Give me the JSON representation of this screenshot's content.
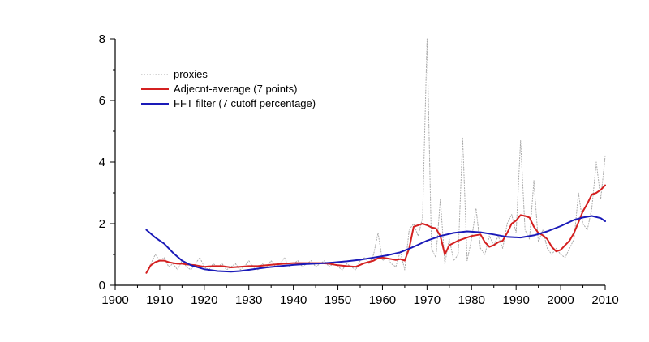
{
  "chart_data": {
    "type": "line",
    "title": "",
    "xlabel": "",
    "ylabel": "",
    "xlim": [
      1900,
      2010
    ],
    "ylim": [
      0,
      8
    ],
    "x_ticks": [
      1900,
      1910,
      1920,
      1930,
      1940,
      1950,
      1960,
      1970,
      1980,
      1990,
      2000,
      2010
    ],
    "y_ticks": [
      0,
      2,
      4,
      6,
      8
    ],
    "grid": false,
    "legend_position": "top-left",
    "series": [
      {
        "name": "proxies",
        "style": "dotted",
        "color": "#a9a9a9",
        "points": [
          [
            1907,
            0.4
          ],
          [
            1908,
            0.7
          ],
          [
            1909,
            1.0
          ],
          [
            1910,
            0.8
          ],
          [
            1911,
            0.9
          ],
          [
            1912,
            0.6
          ],
          [
            1913,
            0.7
          ],
          [
            1914,
            0.5
          ],
          [
            1915,
            0.8
          ],
          [
            1916,
            0.6
          ],
          [
            1917,
            0.5
          ],
          [
            1918,
            0.7
          ],
          [
            1919,
            0.9
          ],
          [
            1920,
            0.6
          ],
          [
            1921,
            0.5
          ],
          [
            1922,
            0.7
          ],
          [
            1923,
            0.6
          ],
          [
            1924,
            0.7
          ],
          [
            1925,
            0.5
          ],
          [
            1926,
            0.6
          ],
          [
            1927,
            0.7
          ],
          [
            1928,
            0.5
          ],
          [
            1929,
            0.6
          ],
          [
            1930,
            0.8
          ],
          [
            1931,
            0.6
          ],
          [
            1932,
            0.5
          ],
          [
            1933,
            0.7
          ],
          [
            1934,
            0.6
          ],
          [
            1935,
            0.8
          ],
          [
            1936,
            0.6
          ],
          [
            1937,
            0.7
          ],
          [
            1938,
            0.9
          ],
          [
            1939,
            0.6
          ],
          [
            1940,
            0.7
          ],
          [
            1941,
            0.8
          ],
          [
            1942,
            0.6
          ],
          [
            1943,
            0.7
          ],
          [
            1944,
            0.8
          ],
          [
            1945,
            0.6
          ],
          [
            1946,
            0.7
          ],
          [
            1947,
            0.8
          ],
          [
            1948,
            0.6
          ],
          [
            1949,
            0.7
          ],
          [
            1950,
            0.6
          ],
          [
            1951,
            0.5
          ],
          [
            1952,
            0.7
          ],
          [
            1953,
            0.6
          ],
          [
            1954,
            0.5
          ],
          [
            1955,
            0.8
          ],
          [
            1956,
            0.9
          ],
          [
            1957,
            0.7
          ],
          [
            1958,
            1.0
          ],
          [
            1959,
            1.7
          ],
          [
            1960,
            0.8
          ],
          [
            1961,
            0.9
          ],
          [
            1962,
            0.7
          ],
          [
            1963,
            0.6
          ],
          [
            1964,
            1.1
          ],
          [
            1965,
            0.5
          ],
          [
            1966,
            1.8
          ],
          [
            1967,
            2.0
          ],
          [
            1968,
            1.6
          ],
          [
            1969,
            2.2
          ],
          [
            1970,
            8.0
          ],
          [
            1971,
            1.2
          ],
          [
            1972,
            0.9
          ],
          [
            1973,
            2.8
          ],
          [
            1974,
            0.7
          ],
          [
            1975,
            1.5
          ],
          [
            1976,
            0.8
          ],
          [
            1977,
            1.0
          ],
          [
            1978,
            4.8
          ],
          [
            1979,
            0.8
          ],
          [
            1980,
            1.5
          ],
          [
            1981,
            2.5
          ],
          [
            1982,
            1.2
          ],
          [
            1983,
            1.0
          ],
          [
            1984,
            1.6
          ],
          [
            1985,
            1.3
          ],
          [
            1986,
            1.6
          ],
          [
            1987,
            1.2
          ],
          [
            1988,
            2.0
          ],
          [
            1989,
            2.3
          ],
          [
            1990,
            1.7
          ],
          [
            1991,
            4.7
          ],
          [
            1992,
            1.8
          ],
          [
            1993,
            1.5
          ],
          [
            1994,
            3.4
          ],
          [
            1995,
            1.4
          ],
          [
            1996,
            1.8
          ],
          [
            1997,
            1.2
          ],
          [
            1998,
            1.0
          ],
          [
            1999,
            1.2
          ],
          [
            2000,
            1.0
          ],
          [
            2001,
            0.9
          ],
          [
            2002,
            1.2
          ],
          [
            2003,
            1.5
          ],
          [
            2004,
            3.0
          ],
          [
            2005,
            2.0
          ],
          [
            2006,
            1.8
          ],
          [
            2007,
            2.5
          ],
          [
            2008,
            4.0
          ],
          [
            2009,
            2.8
          ],
          [
            2010,
            4.2
          ]
        ]
      },
      {
        "name": "Adjecnt-average (7 points)",
        "style": "solid",
        "color": "#d42020",
        "points": [
          [
            1907,
            0.4
          ],
          [
            1908,
            0.65
          ],
          [
            1909,
            0.75
          ],
          [
            1910,
            0.8
          ],
          [
            1911,
            0.8
          ],
          [
            1912,
            0.75
          ],
          [
            1913,
            0.72
          ],
          [
            1914,
            0.7
          ],
          [
            1915,
            0.7
          ],
          [
            1916,
            0.68
          ],
          [
            1918,
            0.65
          ],
          [
            1920,
            0.6
          ],
          [
            1922,
            0.62
          ],
          [
            1924,
            0.62
          ],
          [
            1926,
            0.58
          ],
          [
            1928,
            0.6
          ],
          [
            1930,
            0.62
          ],
          [
            1932,
            0.62
          ],
          [
            1934,
            0.65
          ],
          [
            1936,
            0.68
          ],
          [
            1938,
            0.7
          ],
          [
            1940,
            0.72
          ],
          [
            1942,
            0.72
          ],
          [
            1944,
            0.72
          ],
          [
            1946,
            0.72
          ],
          [
            1948,
            0.7
          ],
          [
            1950,
            0.65
          ],
          [
            1952,
            0.62
          ],
          [
            1954,
            0.6
          ],
          [
            1956,
            0.72
          ],
          [
            1958,
            0.8
          ],
          [
            1959,
            0.88
          ],
          [
            1960,
            0.9
          ],
          [
            1962,
            0.85
          ],
          [
            1963,
            0.82
          ],
          [
            1964,
            0.85
          ],
          [
            1965,
            0.8
          ],
          [
            1966,
            1.2
          ],
          [
            1967,
            1.9
          ],
          [
            1969,
            2.0
          ],
          [
            1970,
            1.95
          ],
          [
            1971,
            1.88
          ],
          [
            1972,
            1.85
          ],
          [
            1973,
            1.6
          ],
          [
            1974,
            1.0
          ],
          [
            1975,
            1.3
          ],
          [
            1977,
            1.45
          ],
          [
            1979,
            1.55
          ],
          [
            1980,
            1.6
          ],
          [
            1982,
            1.65
          ],
          [
            1983,
            1.4
          ],
          [
            1984,
            1.25
          ],
          [
            1985,
            1.3
          ],
          [
            1986,
            1.4
          ],
          [
            1987,
            1.45
          ],
          [
            1988,
            1.7
          ],
          [
            1989,
            2.0
          ],
          [
            1990,
            2.1
          ],
          [
            1991,
            2.28
          ],
          [
            1992,
            2.25
          ],
          [
            1993,
            2.2
          ],
          [
            1994,
            1.9
          ],
          [
            1995,
            1.7
          ],
          [
            1996,
            1.62
          ],
          [
            1997,
            1.5
          ],
          [
            1998,
            1.25
          ],
          [
            1999,
            1.1
          ],
          [
            2000,
            1.15
          ],
          [
            2001,
            1.3
          ],
          [
            2002,
            1.45
          ],
          [
            2003,
            1.7
          ],
          [
            2004,
            2.05
          ],
          [
            2005,
            2.4
          ],
          [
            2006,
            2.65
          ],
          [
            2007,
            2.95
          ],
          [
            2008,
            3.0
          ],
          [
            2009,
            3.1
          ],
          [
            2010,
            3.25
          ]
        ]
      },
      {
        "name": "FFT filter (7 cutoff percentage)",
        "style": "solid",
        "color": "#1a1ab8",
        "points": [
          [
            1907,
            1.8
          ],
          [
            1909,
            1.55
          ],
          [
            1911,
            1.35
          ],
          [
            1913,
            1.05
          ],
          [
            1915,
            0.8
          ],
          [
            1917,
            0.65
          ],
          [
            1920,
            0.52
          ],
          [
            1923,
            0.46
          ],
          [
            1926,
            0.44
          ],
          [
            1928,
            0.46
          ],
          [
            1931,
            0.52
          ],
          [
            1934,
            0.58
          ],
          [
            1937,
            0.62
          ],
          [
            1940,
            0.66
          ],
          [
            1943,
            0.69
          ],
          [
            1946,
            0.71
          ],
          [
            1949,
            0.74
          ],
          [
            1952,
            0.78
          ],
          [
            1955,
            0.83
          ],
          [
            1958,
            0.9
          ],
          [
            1961,
            0.97
          ],
          [
            1964,
            1.07
          ],
          [
            1967,
            1.25
          ],
          [
            1970,
            1.45
          ],
          [
            1973,
            1.6
          ],
          [
            1976,
            1.7
          ],
          [
            1979,
            1.75
          ],
          [
            1982,
            1.72
          ],
          [
            1985,
            1.65
          ],
          [
            1988,
            1.57
          ],
          [
            1991,
            1.55
          ],
          [
            1994,
            1.62
          ],
          [
            1997,
            1.75
          ],
          [
            2000,
            1.92
          ],
          [
            2003,
            2.12
          ],
          [
            2005,
            2.2
          ],
          [
            2007,
            2.25
          ],
          [
            2009,
            2.18
          ],
          [
            2010,
            2.08
          ]
        ]
      }
    ]
  }
}
